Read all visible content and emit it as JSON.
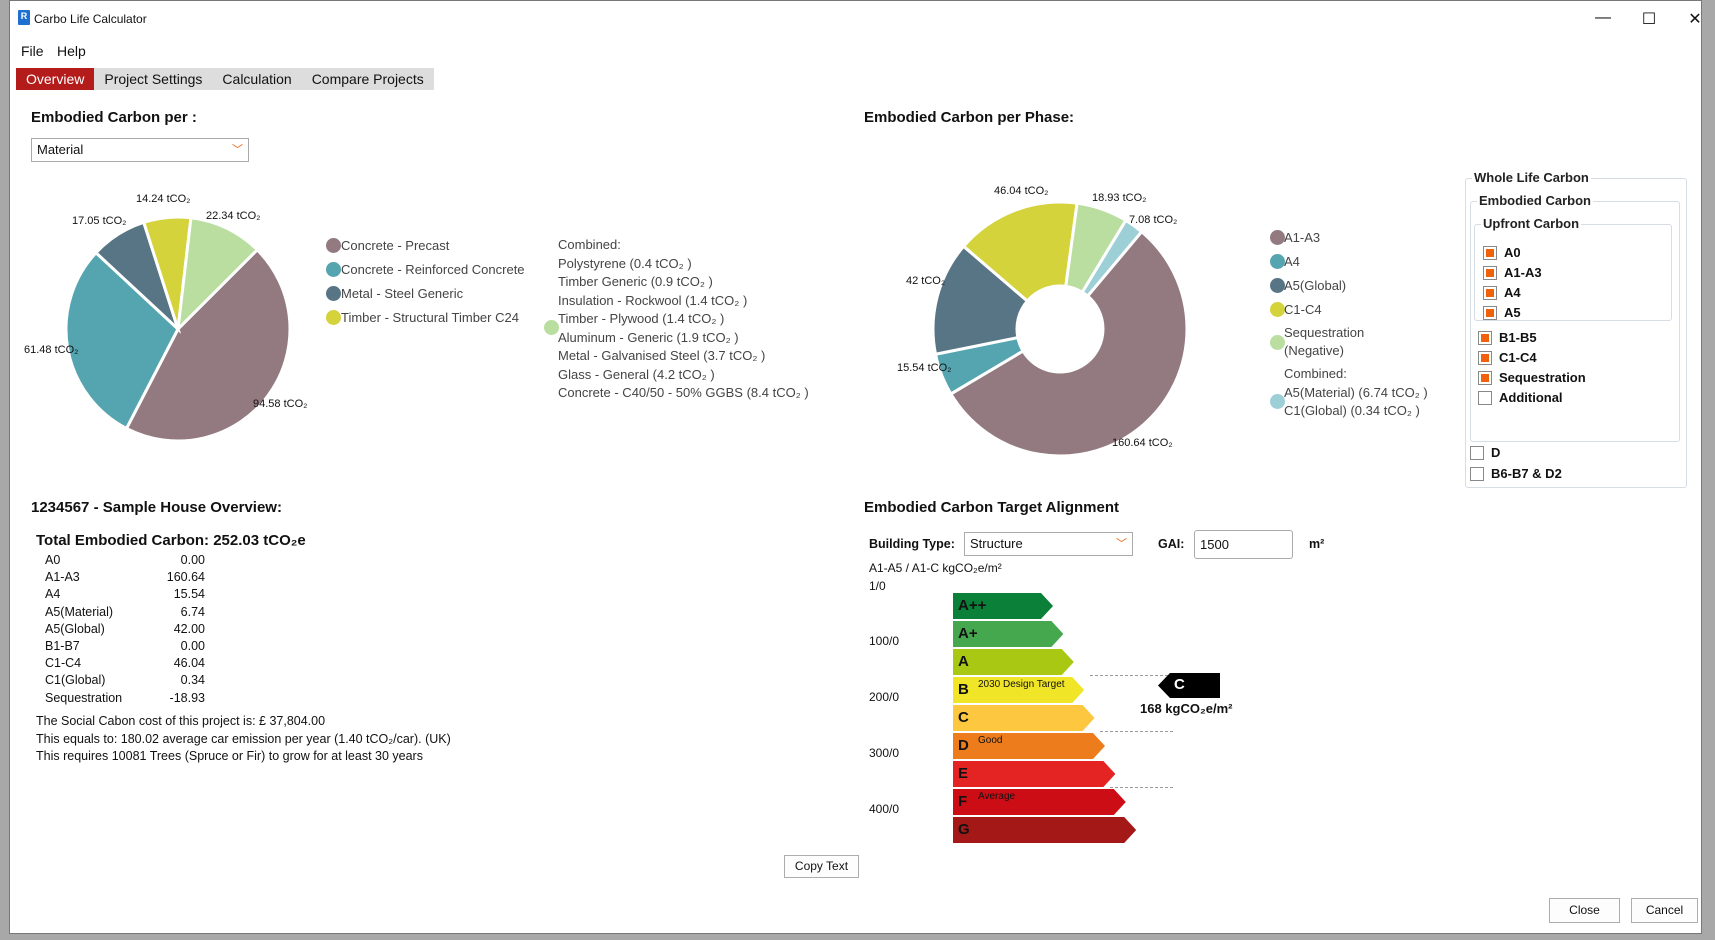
{
  "window": {
    "title": "Carbo Life Calculator",
    "minimize": "—",
    "maximize": "☐",
    "close": "✕"
  },
  "menu": [
    "File",
    "Help"
  ],
  "tabs": [
    "Overview",
    "Project Settings",
    "Calculation",
    "Compare Projects"
  ],
  "material_panel": {
    "heading": "Embodied Carbon per :",
    "selector": "Material",
    "legend": [
      "Concrete - Precast",
      "Concrete - Reinforced Concrete",
      "Metal - Steel Generic",
      "Timber - Structural Timber C24"
    ],
    "combined": [
      "Combined:",
      "Polystyrene (0.4 tCO₂ )",
      "Timber Generic (0.9 tCO₂ )",
      "Insulation - Rockwool (1.4 tCO₂ )",
      "Timber - Plywood (1.4 tCO₂ )",
      "Aluminum - Generic (1.9 tCO₂ )",
      "Metal - Galvanised Steel (3.7 tCO₂ )",
      "Glass - General (4.2 tCO₂ )",
      "Concrete - C40/50 - 50% GGBS (8.4 tCO₂ )"
    ]
  },
  "phase_panel": {
    "heading": "Embodied Carbon per Phase:",
    "legend": [
      "A1-A3",
      "A4",
      "A5(Global)",
      "C1-C4",
      "Sequestration",
      "(Negative)",
      "Combined:",
      "A5(Material) (6.74 tCO₂ )",
      "C1(Global) (0.34 tCO₂ )"
    ]
  },
  "chart_data": [
    {
      "type": "pie",
      "title": "Embodied Carbon per Material",
      "categories": [
        "Concrete - Precast",
        "Concrete - Reinforced Concrete",
        "Metal - Steel Generic",
        "Timber - Structural Timber C24",
        "Combined"
      ],
      "values": [
        94.58,
        61.48,
        17.05,
        14.24,
        22.34
      ],
      "labels": [
        "94.58 tCO₂",
        "61.48 tCO₂",
        "17.05 tCO₂",
        "14.24 tCO₂",
        "22.34 tCO₂"
      ],
      "colors": [
        "#927a80",
        "#55a5b0",
        "#587585",
        "#d4d33b",
        "#b9dea0"
      ]
    },
    {
      "type": "pie",
      "title": "Embodied Carbon per Phase",
      "categories": [
        "A1-A3",
        "A4",
        "A5(Global)",
        "C1-C4",
        "Sequestration (Negative)",
        "Combined"
      ],
      "values": [
        160.64,
        15.54,
        42,
        46.04,
        18.93,
        7.08
      ],
      "labels": [
        "160.64 tCO₂",
        "15.54 tCO₂",
        "42 tCO₂",
        "46.04 tCO₂",
        "18.93 tCO₂",
        "7.08 tCO₂"
      ],
      "colors": [
        "#927a80",
        "#55a5b0",
        "#587585",
        "#d4d33b",
        "#b9dea0",
        "#9dd0d6"
      ]
    }
  ],
  "whole_life": {
    "title": "Whole Life Carbon",
    "embodied": "Embodied Carbon",
    "upfront": "Upfront Carbon",
    "items": [
      {
        "label": "A0",
        "checked": true
      },
      {
        "label": "A1-A3",
        "checked": true
      },
      {
        "label": "A4",
        "checked": true
      },
      {
        "label": "A5",
        "checked": true
      },
      {
        "label": "B1-B5",
        "checked": true
      },
      {
        "label": "C1-C4",
        "checked": true
      },
      {
        "label": "Sequestration",
        "checked": true
      },
      {
        "label": "Additional",
        "checked": false
      },
      {
        "label": "D",
        "checked": false
      },
      {
        "label": "B6-B7 & D2",
        "checked": false
      }
    ]
  },
  "overview": {
    "heading": "1234567 - Sample House Overview:",
    "total": "Total Embodied Carbon: 252.03 tCO₂e",
    "rows": [
      [
        "A0",
        "0.00"
      ],
      [
        "A1-A3",
        "160.64"
      ],
      [
        "A4",
        "15.54"
      ],
      [
        "A5(Material)",
        "6.74"
      ],
      [
        "A5(Global)",
        "42.00"
      ],
      [
        "B1-B7",
        "0.00"
      ],
      [
        "C1-C4",
        "46.04"
      ],
      [
        "C1(Global)",
        "0.34"
      ],
      [
        "Sequestration",
        "-18.93"
      ]
    ],
    "notes": [
      "The Social Cabon cost of this project is: £ 37,804.00",
      "This equals to: 180.02 average car emission per year (1.40 tCO₂/car). (UK)",
      "This requires 10081 Trees (Spruce or Fir) to grow for at least 30 years"
    ]
  },
  "target": {
    "heading": "Embodied Carbon Target Alignment",
    "building_type_label": "Building Type:",
    "building_type": "Structure",
    "gai_label": "GAI:",
    "gai": "1500",
    "gai_unit": "m²",
    "axis_title": "A1-A5 / A1-C kgCO₂e/m²",
    "ticks": [
      "1/0",
      "100/0",
      "200/0",
      "300/0",
      "400/0"
    ],
    "bands": [
      {
        "label": "A++",
        "color": "#0a8038",
        "note": ""
      },
      {
        "label": "A+",
        "color": "#45a84f",
        "note": ""
      },
      {
        "label": "A",
        "color": "#a8c814",
        "note": ""
      },
      {
        "label": "B",
        "color": "#f0e526",
        "note": "2030 Design Target"
      },
      {
        "label": "C",
        "color": "#fdc840",
        "note": ""
      },
      {
        "label": "D",
        "color": "#ed7d1c",
        "note": "Good"
      },
      {
        "label": "E",
        "color": "#e32423",
        "note": ""
      },
      {
        "label": "F",
        "color": "#cd0d15",
        "note": "Average"
      },
      {
        "label": "G",
        "color": "#a51818",
        "note": ""
      }
    ],
    "result_band": "C",
    "result_value": "168 kgCO₂e/m²"
  },
  "buttons": {
    "copy": "Copy Text",
    "close": "Close",
    "cancel": "Cancel"
  }
}
